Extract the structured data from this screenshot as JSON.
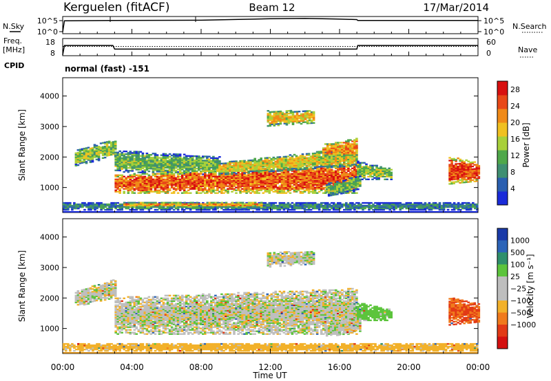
{
  "header": {
    "station": "Kerguelen (fitACF)",
    "beam": "Beam 12",
    "date": "17/Mar/2014"
  },
  "panels": {
    "nsky_label": "N.Sky",
    "nsearch_label": "N.Search",
    "nsky_ticks": [
      "10^5",
      "10^0"
    ],
    "freq_label": "Freq.",
    "freq_unit": "[MHz]",
    "freq_ticks": [
      "18",
      "8"
    ],
    "nave_label": "Nave",
    "nave_ticks": [
      "60",
      "0"
    ],
    "cpid_label": "CPID",
    "cpid_value": "normal (fast) -151"
  },
  "colors": {
    "power_scale": [
      "#1a2bd9",
      "#2a5fb0",
      "#3f8f72",
      "#4fa84a",
      "#a8d03a",
      "#f0c020",
      "#f08a18",
      "#e84818",
      "#d81010"
    ],
    "velocity_scale": [
      "#1a3aa8",
      "#2c64b8",
      "#2f8f6c",
      "#5cc43c",
      "#bebebe",
      "#bebebe",
      "#f2b12a",
      "#f07a1c",
      "#e23a16",
      "#d41010"
    ]
  },
  "chart_data": [
    {
      "type": "line",
      "panel": "search-noise",
      "x_unit": "hours UT",
      "ylabel": "N.Sky",
      "y2label": "N.Search",
      "scale": "log",
      "x": [
        0,
        0.1,
        2.9,
        3.0,
        8,
        12,
        14,
        16,
        17,
        17.05,
        24
      ],
      "sky_log10": [
        0.3,
        4.2,
        4.3,
        4.3,
        4.4,
        4.9,
        5.0,
        4.8,
        4.6,
        4.3,
        4.3
      ]
    },
    {
      "type": "line",
      "panel": "frequency-nave",
      "ylabel": "Freq. [MHz]",
      "y2label": "Nave",
      "ylim": [
        8,
        18
      ],
      "y2lim": [
        0,
        60
      ],
      "x": [
        0,
        0.1,
        2.9,
        3.0,
        17.0,
        17.05,
        24
      ],
      "freq_mhz": [
        8,
        14.3,
        14.3,
        11.9,
        11.9,
        14.3,
        14.3
      ],
      "nave": [
        34,
        34,
        34,
        34,
        34,
        34,
        34
      ]
    },
    {
      "type": "heatmap",
      "panel": "power",
      "ylabel": "Slant Range [km]",
      "colorbar_label": "Power [dB]",
      "colorbar_ticks": [
        "28",
        "24",
        "20",
        "16",
        "12",
        "8",
        "4"
      ],
      "clim": [
        0,
        30
      ],
      "ylim": [
        180,
        4600
      ],
      "y_ticks": [
        "1000",
        "2000",
        "3000",
        "4000"
      ],
      "regions": [
        {
          "t": [
            0.7,
            3.0
          ],
          "r0": [
            1700,
            2000
          ],
          "r1": [
            2200,
            2600
          ],
          "v": 14
        },
        {
          "t": [
            3.0,
            9.0
          ],
          "r0": [
            1500,
            1400
          ],
          "r1": [
            2200,
            2000
          ],
          "v": 12
        },
        {
          "t": [
            3.0,
            17.0
          ],
          "r0": [
            800,
            800
          ],
          "r1": [
            1400,
            1800
          ],
          "v": 24
        },
        {
          "t": [
            9.0,
            17.0
          ],
          "r0": [
            1400,
            1700
          ],
          "r1": [
            1800,
            2300
          ],
          "v": 17
        },
        {
          "t": [
            11.8,
            14.5
          ],
          "r0": [
            3000,
            3100
          ],
          "r1": [
            3500,
            3500
          ],
          "v": 18
        },
        {
          "t": [
            15.0,
            17.0
          ],
          "r0": [
            2000,
            2000
          ],
          "r1": [
            2400,
            2600
          ],
          "v": 21
        },
        {
          "t": [
            17.0,
            19.0
          ],
          "r0": [
            1250,
            1250
          ],
          "r1": [
            1850,
            1600
          ],
          "v": 14
        },
        {
          "t": [
            15.2,
            17.2
          ],
          "r0": [
            700,
            900
          ],
          "r1": [
            1100,
            1400
          ],
          "v": 12
        },
        {
          "t": [
            22.3,
            24.0
          ],
          "r0": [
            1100,
            1200
          ],
          "r1": [
            2000,
            1800
          ],
          "v": 25
        },
        {
          "t": [
            0.0,
            24.0
          ],
          "r0": [
            250,
            250
          ],
          "r1": [
            500,
            500
          ],
          "v": 8
        },
        {
          "t": [
            3.5,
            11.5
          ],
          "r0": [
            350,
            350
          ],
          "r1": [
            500,
            500
          ],
          "v": 20
        }
      ]
    },
    {
      "type": "heatmap",
      "panel": "velocity",
      "ylabel": "Slant Range [km]",
      "colorbar_label": "Velocity [m s⁻¹]",
      "colorbar_ticks": [
        "1000",
        "500",
        "100",
        "25",
        "−25",
        "−100",
        "−500",
        "−1000"
      ],
      "ylim": [
        180,
        4600
      ],
      "y_ticks": [
        "1000",
        "2000",
        "3000",
        "4000"
      ],
      "xlabel": "Time UT",
      "x_ticks": [
        "00:00",
        "04:00",
        "08:00",
        "12:00",
        "16:00",
        "20:00",
        "00:00"
      ],
      "regions": [
        {
          "t": [
            0.7,
            3.0
          ],
          "r0": [
            1700,
            2000
          ],
          "r1": [
            2200,
            2600
          ],
          "v": 0
        },
        {
          "t": [
            3.0,
            17.0
          ],
          "r0": [
            800,
            800
          ],
          "r1": [
            2000,
            2300
          ],
          "v": 0
        },
        {
          "t": [
            11.8,
            14.5
          ],
          "r0": [
            3000,
            3100
          ],
          "r1": [
            3500,
            3500
          ],
          "v": 0
        },
        {
          "t": [
            17.0,
            19.0
          ],
          "r0": [
            1250,
            1250
          ],
          "r1": [
            1850,
            1600
          ],
          "v": 60
        },
        {
          "t": [
            15.2,
            17.2
          ],
          "r0": [
            700,
            900
          ],
          "r1": [
            1100,
            1400
          ],
          "v": 0
        },
        {
          "t": [
            22.3,
            24.0
          ],
          "r0": [
            1100,
            1200
          ],
          "r1": [
            2000,
            1800
          ],
          "v": -300
        },
        {
          "t": [
            0.0,
            24.0
          ],
          "r0": [
            250,
            250
          ],
          "r1": [
            500,
            500
          ],
          "v": -60
        }
      ]
    }
  ]
}
